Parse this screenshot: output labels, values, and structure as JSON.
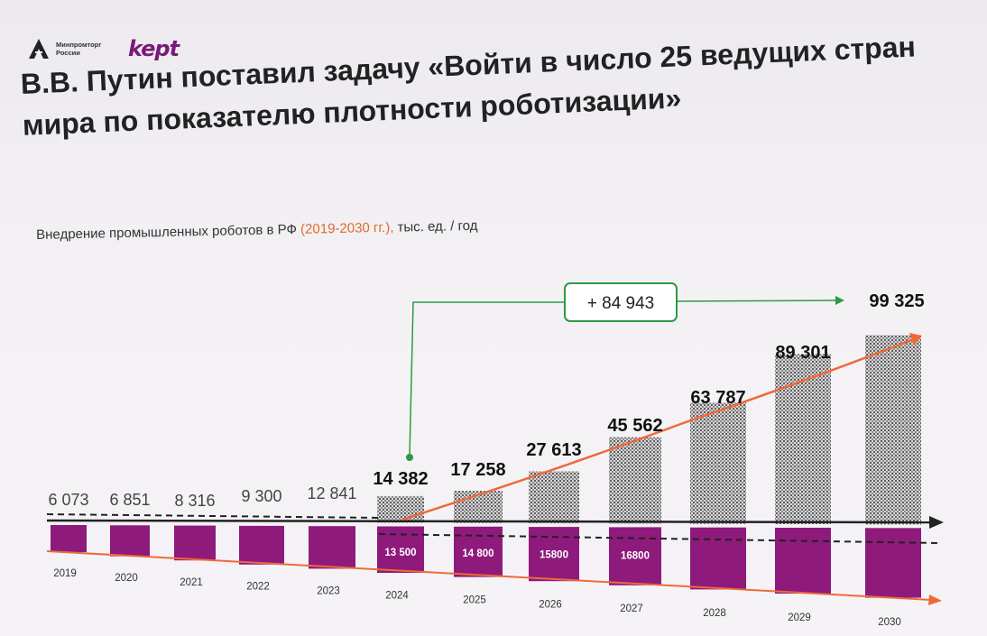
{
  "header": {
    "minpromtorg_label": "Минпромторг России",
    "kept_label": "kept"
  },
  "slide": {
    "title": "В.В. Путин поставил задачу «Войти в число 25 ведущих стран мира по показателю плотности роботизации»"
  },
  "chart_data": {
    "type": "bar",
    "subtitle_prefix": "Внедрение промышленных роботов в РФ ",
    "subtitle_accent": "(2019-2030 гг.),",
    "subtitle_suffix": " тыс. ед. / год",
    "categories": [
      "2019",
      "2020",
      "2021",
      "2022",
      "2023",
      "2024",
      "2025",
      "2026",
      "2027",
      "2028",
      "2029",
      "2030"
    ],
    "series": [
      {
        "values": [
          6073,
          6851,
          8316,
          9300,
          12841,
          14382,
          17258,
          27613,
          45562,
          63787,
          89301,
          99325
        ],
        "labels": [
          "6 073",
          "6 851",
          "8 316",
          "9 300",
          "12 841",
          "14 382",
          "17 258",
          "27 613",
          "45 562",
          "63 787",
          "89 301",
          "99 325"
        ]
      },
      {
        "values": [
          null,
          null,
          null,
          null,
          null,
          13500,
          14800,
          15800,
          16800,
          null,
          null,
          null
        ],
        "labels": [
          "",
          "",
          "",
          "",
          "",
          "13 500",
          "14 800",
          "15800",
          "16800",
          "",
          "",
          ""
        ]
      }
    ],
    "callout": "+ 84 943",
    "colors": {
      "bar": "#8e1a7c",
      "hatch": "#6c6c6c",
      "trend": "#ee6a3a",
      "callout": "#2e9a45"
    }
  }
}
